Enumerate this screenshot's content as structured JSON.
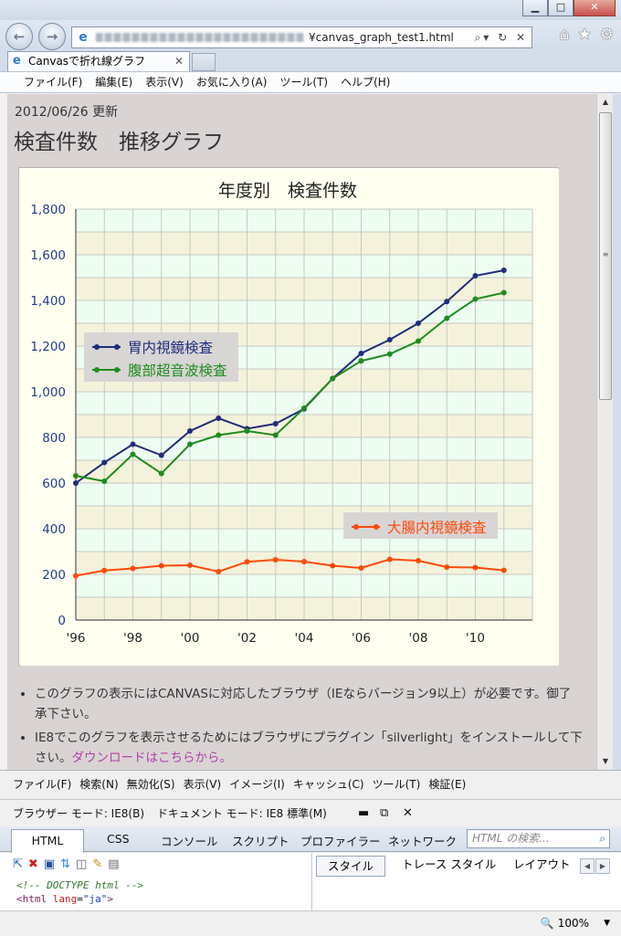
{
  "window": {
    "minimize": "▁",
    "maximize": "□",
    "close": "✕"
  },
  "nav": {
    "back": "←",
    "forward": "→",
    "address_suffix": "¥canvas_graph_test1.html",
    "address_controls": "⌕▾ ↻ ✕",
    "home_icon": "⌂",
    "favorites_icon": "★",
    "tools_icon": "⚙"
  },
  "tab": {
    "title": "Canvasで折れ線グラフ",
    "close": "✕"
  },
  "menu": [
    "ファイル(F)",
    "編集(E)",
    "表示(V)",
    "お気に入り(A)",
    "ツール(T)",
    "ヘルプ(H)"
  ],
  "page": {
    "updated": "2012/06/26 更新",
    "heading": "検査件数　推移グラフ",
    "notes": [
      {
        "text": "このグラフの表示にはCANVASに対応したブラウザ（IEならバージョン9以上）が必要です。御了承下さい。",
        "link": ""
      },
      {
        "text": "IE8でこのグラフを表示させるためにはブラウザにプラグイン「silverlight」をインストールして下さい。",
        "link": "ダウンロードはこちらから。"
      }
    ]
  },
  "chart_data": {
    "type": "line",
    "title": "年度別　検査件数",
    "x": [
      1996,
      1997,
      1998,
      1999,
      2000,
      2001,
      2002,
      2003,
      2004,
      2005,
      2006,
      2007,
      2008,
      2009,
      2010,
      2011
    ],
    "x_tick_labels": [
      "'96",
      "'98",
      "'00",
      "'02",
      "'04",
      "'06",
      "'08",
      "'10"
    ],
    "y_tick_labels": [
      "0",
      "200",
      "400",
      "600",
      "800",
      "1,000",
      "1,200",
      "1,400",
      "1,600",
      "1,800"
    ],
    "ylim": [
      0,
      1800
    ],
    "grid": true,
    "series": [
      {
        "name": "胃内視鏡検査",
        "color": "#1f2d7a",
        "values": [
          600,
          690,
          770,
          722,
          828,
          884,
          838,
          860,
          925,
          1058,
          1168,
          1228,
          1300,
          1395,
          1508,
          1532
        ]
      },
      {
        "name": "腹部超音波検査",
        "color": "#1e8c1e",
        "values": [
          632,
          608,
          726,
          642,
          770,
          810,
          828,
          810,
          928,
          1058,
          1135,
          1165,
          1222,
          1322,
          1406,
          1434
        ]
      },
      {
        "name": "大腸内視鏡検査",
        "color": "#ff4a0a",
        "values": [
          194,
          217,
          226,
          238,
          240,
          212,
          255,
          264,
          256,
          238,
          228,
          266,
          260,
          232,
          230,
          218
        ]
      }
    ]
  },
  "devtools": {
    "menu": [
      "ファイル(F)",
      "検索(N)",
      "無効化(S)",
      "表示(V)",
      "イメージ(I)",
      "キャッシュ(C)",
      "ツール(T)",
      "検証(E)"
    ],
    "browser_mode": "ブラウザー モード:  IE8(B)",
    "document_mode": "ドキュメント モード:  IE8 標準(M)",
    "tabs": [
      "HTML",
      "CSS",
      "コンソール",
      "スクリプト",
      "プロファイラー",
      "ネットワーク"
    ],
    "search_placeholder": "HTML の検索...",
    "search_icon": "⌕",
    "pane_tabs": [
      "スタイル",
      "トレース スタイル",
      "レイアウト"
    ],
    "tree_comment": "<!-- DOCTYPE html -->",
    "tree_tag_open": "<html ",
    "tree_attr": "lang",
    "tree_val": "\"ja\"",
    "tree_tag_close": ">"
  },
  "status": {
    "zoom": "100%"
  }
}
